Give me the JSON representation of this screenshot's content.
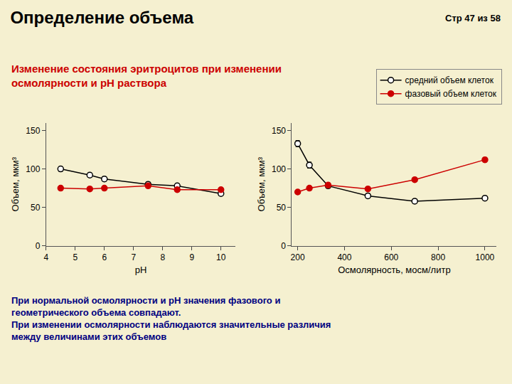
{
  "title": "Определение объема",
  "subtitle": "Изменение состояния эритроцитов при изменении\nосмолярности и рН раствора",
  "annotations": [
    "Стр 47 из 58",
    "При нормальной осмолярности и pH значения фазового и\nгеометрического объема совпадают.\nПри изменении осмолярности наблюдаются значительные различия\nмежду величинами этих объемов"
  ],
  "chart_data": [
    {
      "type": "line",
      "x": [
        4.5,
        5.5,
        6.0,
        7.5,
        8.5,
        10.0
      ],
      "xlabel": "рН",
      "ylabel": "Объем, мкм³",
      "xlim": [
        4,
        10.5
      ],
      "ylim": [
        0,
        160
      ],
      "xticks": [
        4,
        5,
        6,
        7,
        8,
        9,
        10
      ],
      "yticks": [
        0,
        50,
        100,
        150
      ],
      "grid": false,
      "legend": "upper right",
      "series": [
        {
          "name": "средний объем клеток",
          "color": "#000000",
          "marker": "open circle",
          "values": [
            100,
            92,
            87,
            80,
            78,
            68
          ],
          "errors": [
            3,
            3,
            3,
            3,
            3,
            3
          ]
        },
        {
          "name": "фазовый объем клеток",
          "color": "#cc0000",
          "marker": "circle",
          "values": [
            75,
            74,
            75,
            78,
            73,
            73
          ],
          "errors": [
            2,
            2,
            2,
            2,
            2,
            2
          ]
        }
      ]
    },
    {
      "type": "line",
      "x": [
        200,
        250,
        330,
        500,
        700,
        1000
      ],
      "xlabel": "Осмолярность, мосм/литр",
      "ylabel": "Объем, мкм³",
      "xlim": [
        175,
        1050
      ],
      "ylim": [
        0,
        160
      ],
      "xticks": [
        200,
        400,
        600,
        800,
        1000
      ],
      "yticks": [
        0,
        50,
        100,
        150
      ],
      "grid": false,
      "series": [
        {
          "name": "средний объем клеток",
          "color": "#000000",
          "marker": "open circle",
          "values": [
            133,
            105,
            78,
            65,
            58,
            62
          ],
          "errors": [
            4,
            4,
            3,
            3,
            3,
            3
          ]
        },
        {
          "name": "фазовый объем клеток",
          "color": "#cc0000",
          "marker": "circle",
          "values": [
            70,
            75,
            79,
            74,
            86,
            112
          ],
          "errors": [
            2,
            2,
            3,
            2,
            2,
            3
          ]
        }
      ]
    }
  ]
}
